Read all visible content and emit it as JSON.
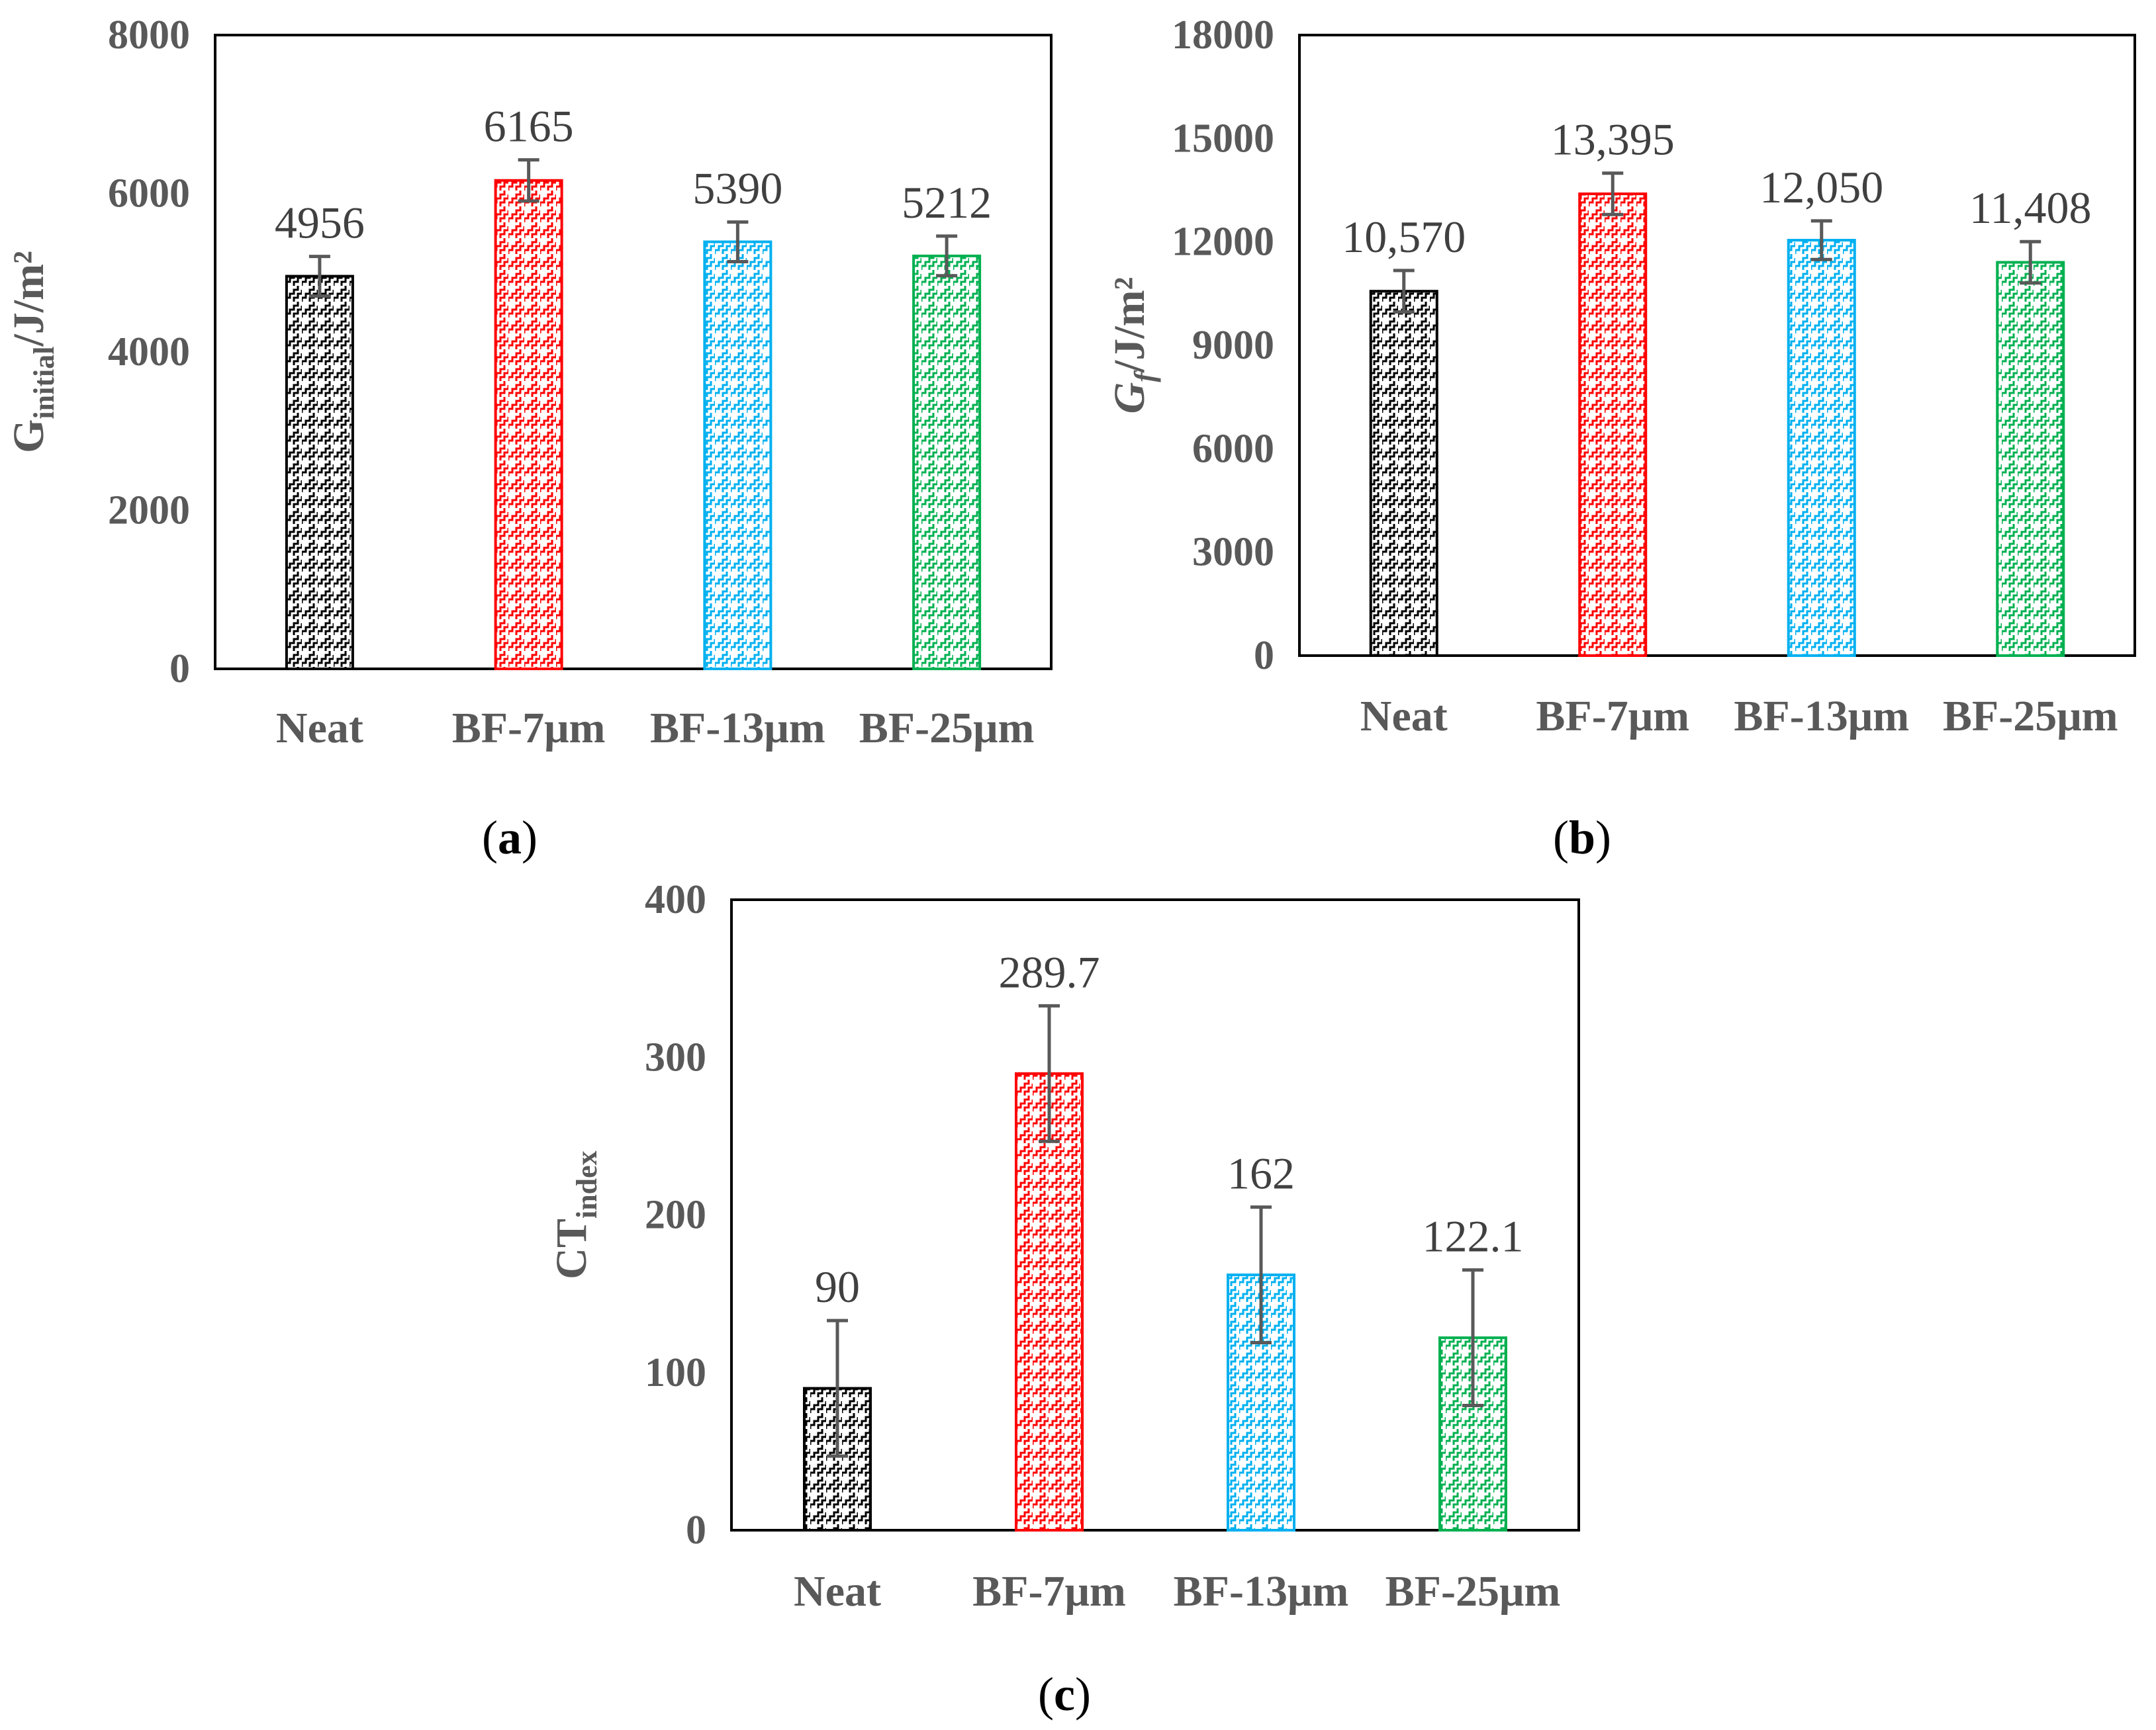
{
  "chart_data": [
    {
      "type": "bar",
      "panel": "(a)",
      "panel_text": "a",
      "ylabel_main": "G",
      "ylabel_sub": "initial",
      "ylabel_rest": "/J/m²",
      "ylabel_italic": false,
      "ylim": [
        0,
        8000
      ],
      "yticks": [
        "0",
        "2000",
        "4000",
        "6000",
        "8000"
      ],
      "ytick_values": [
        0,
        2000,
        4000,
        6000,
        8000
      ],
      "categories": [
        "Neat",
        "BF-7μm",
        "BF-13μm",
        "BF-25μm"
      ],
      "values": [
        4956,
        6165,
        5390,
        5212
      ],
      "value_labels": [
        "4956",
        "6165",
        "5390",
        "5212"
      ],
      "errors": [
        250,
        260,
        250,
        250
      ],
      "error_color": "#595959"
    },
    {
      "type": "bar",
      "panel": "(b)",
      "panel_text": "b",
      "ylabel_main": "G",
      "ylabel_sub": "f",
      "ylabel_rest": "/J/m²",
      "ylabel_italic": true,
      "ylim": [
        0,
        18000
      ],
      "yticks": [
        "0",
        "3000",
        "6000",
        "9000",
        "12000",
        "15000",
        "18000"
      ],
      "ytick_values": [
        0,
        3000,
        6000,
        9000,
        12000,
        15000,
        18000
      ],
      "categories": [
        "Neat",
        "BF-7μm",
        "BF-13μm",
        "BF-25μm"
      ],
      "values": [
        10570,
        13395,
        12050,
        11408
      ],
      "value_labels": [
        "10,570",
        "13,395",
        "12,050",
        "11,408"
      ],
      "errors": [
        600,
        600,
        560,
        600
      ],
      "error_color": "#595959"
    },
    {
      "type": "bar",
      "panel": "(c)",
      "panel_text": "c",
      "ylabel_main": "CT",
      "ylabel_sub": "index",
      "ylabel_rest": "",
      "ylabel_italic": false,
      "ylim": [
        0,
        400
      ],
      "yticks": [
        "0",
        "100",
        "200",
        "300",
        "400"
      ],
      "ytick_values": [
        0,
        100,
        200,
        300,
        400
      ],
      "categories": [
        "Neat",
        "BF-7μm",
        "BF-13μm",
        "BF-25μm"
      ],
      "values": [
        90,
        289.7,
        162,
        122.1
      ],
      "value_labels": [
        "90",
        "289.7",
        "162",
        "122.1"
      ],
      "errors": [
        43,
        43,
        43,
        43
      ],
      "error_color": "#595959"
    }
  ],
  "colors": {
    "series": [
      "#000000",
      "#ff0000",
      "#00b0f0",
      "#00b050"
    ],
    "axis_text": "#595959"
  }
}
